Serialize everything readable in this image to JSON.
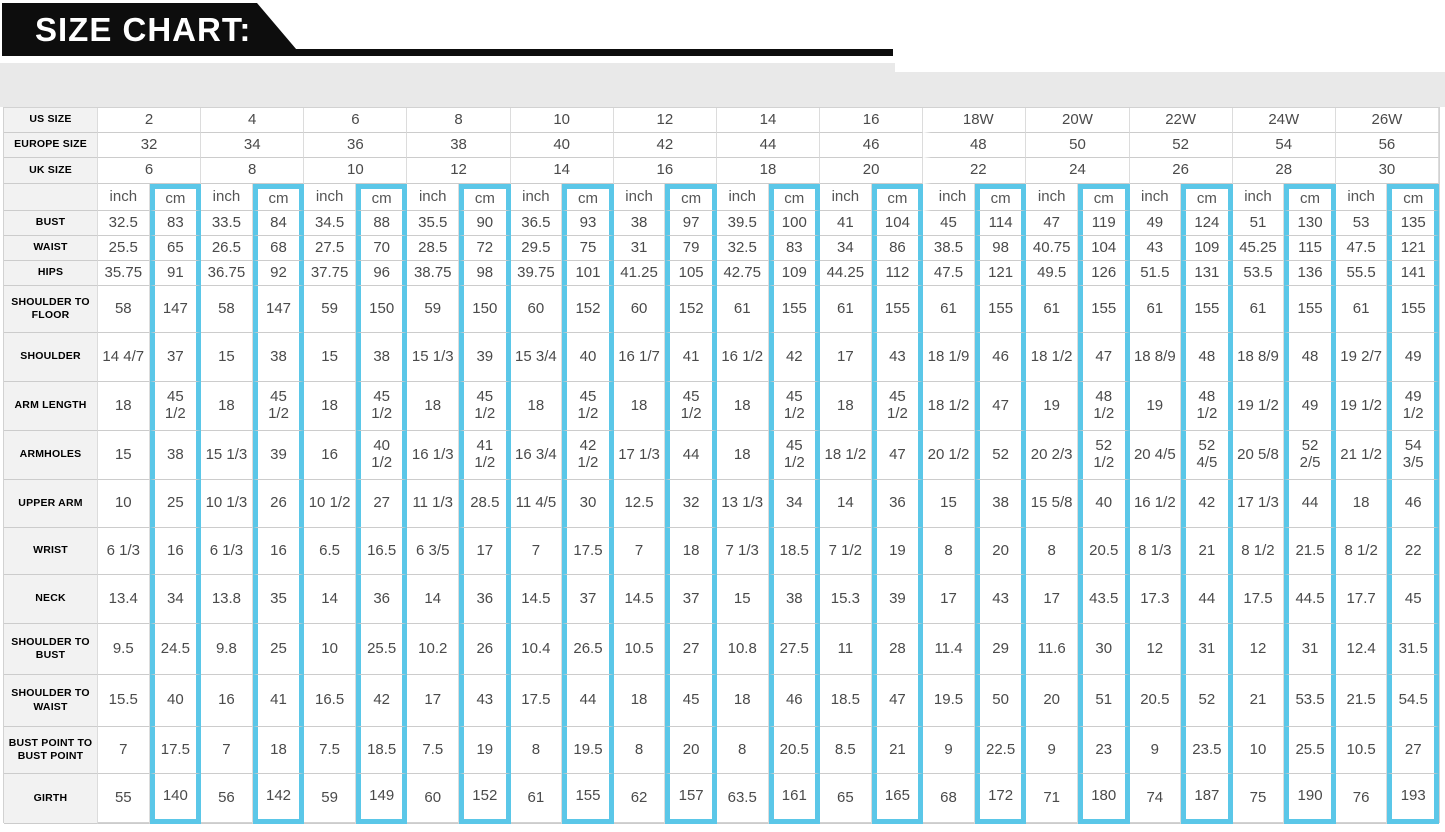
{
  "banner": {
    "title": "SIZE CHART:"
  },
  "colors": {
    "accent_cyan": "#5bc7e8",
    "banner_black": "#0d0d0d",
    "strip_gray": "#e9e9e9",
    "label_gray": "#f2f2f2",
    "value_text": "#4a4a4a"
  },
  "chart_data": {
    "type": "table",
    "title": "SIZE CHART:",
    "unit_labels": [
      "inch",
      "cm"
    ],
    "size_row_labels": {
      "us": "US SIZE",
      "europe": "EUROPE SIZE",
      "uk": "UK SIZE"
    },
    "sizes": {
      "us": [
        "2",
        "4",
        "6",
        "8",
        "10",
        "12",
        "14",
        "16",
        "18W",
        "20W",
        "22W",
        "24W",
        "26W"
      ],
      "europe": [
        "32",
        "34",
        "36",
        "38",
        "40",
        "42",
        "44",
        "46",
        "48",
        "50",
        "52",
        "54",
        "56"
      ],
      "uk": [
        "6",
        "8",
        "10",
        "12",
        "14",
        "16",
        "18",
        "20",
        "22",
        "24",
        "26",
        "28",
        "30"
      ]
    },
    "measurements": [
      {
        "label": "BUST",
        "inch": [
          "32.5",
          "33.5",
          "34.5",
          "35.5",
          "36.5",
          "38",
          "39.5",
          "41",
          "45",
          "47",
          "49",
          "51",
          "53"
        ],
        "cm": [
          "83",
          "84",
          "88",
          "90",
          "93",
          "97",
          "100",
          "104",
          "114",
          "119",
          "124",
          "130",
          "135"
        ]
      },
      {
        "label": "WAIST",
        "inch": [
          "25.5",
          "26.5",
          "27.5",
          "28.5",
          "29.5",
          "31",
          "32.5",
          "34",
          "38.5",
          "40.75",
          "43",
          "45.25",
          "47.5"
        ],
        "cm": [
          "65",
          "68",
          "70",
          "72",
          "75",
          "79",
          "83",
          "86",
          "98",
          "104",
          "109",
          "115",
          "121"
        ]
      },
      {
        "label": "HIPS",
        "inch": [
          "35.75",
          "36.75",
          "37.75",
          "38.75",
          "39.75",
          "41.25",
          "42.75",
          "44.25",
          "47.5",
          "49.5",
          "51.5",
          "53.5",
          "55.5"
        ],
        "cm": [
          "91",
          "92",
          "96",
          "98",
          "101",
          "105",
          "109",
          "112",
          "121",
          "126",
          "131",
          "136",
          "141"
        ]
      },
      {
        "label": "SHOULDER TO FLOOR",
        "inch": [
          "58",
          "58",
          "59",
          "59",
          "60",
          "60",
          "61",
          "61",
          "61",
          "61",
          "61",
          "61",
          "61"
        ],
        "cm": [
          "147",
          "147",
          "150",
          "150",
          "152",
          "152",
          "155",
          "155",
          "155",
          "155",
          "155",
          "155",
          "155"
        ]
      },
      {
        "label": "SHOULDER",
        "inch": [
          "14 4/7",
          "15",
          "15",
          "15 1/3",
          "15 3/4",
          "16 1/7",
          "16 1/2",
          "17",
          "18 1/9",
          "18 1/2",
          "18 8/9",
          "18 8/9",
          "19 2/7"
        ],
        "cm": [
          "37",
          "38",
          "38",
          "39",
          "40",
          "41",
          "42",
          "43",
          "46",
          "47",
          "48",
          "48",
          "49"
        ]
      },
      {
        "label": "ARM LENGTH",
        "inch": [
          "18",
          "18",
          "18",
          "18",
          "18",
          "18",
          "18",
          "18",
          "18 1/2",
          "19",
          "19",
          "19 1/2",
          "19 1/2"
        ],
        "cm": [
          "45 1/2",
          "45 1/2",
          "45 1/2",
          "45 1/2",
          "45 1/2",
          "45 1/2",
          "45 1/2",
          "45 1/2",
          "47",
          "48 1/2",
          "48 1/2",
          "49",
          "49 1/2"
        ]
      },
      {
        "label": "ARMHOLES",
        "inch": [
          "15",
          "15 1/3",
          "16",
          "16 1/3",
          "16 3/4",
          "17 1/3",
          "18",
          "18 1/2",
          "20 1/2",
          "20 2/3",
          "20 4/5",
          "20 5/8",
          "21 1/2"
        ],
        "cm": [
          "38",
          "39",
          "40 1/2",
          "41 1/2",
          "42 1/2",
          "44",
          "45 1/2",
          "47",
          "52",
          "52 1/2",
          "52 4/5",
          "52 2/5",
          "54 3/5"
        ]
      },
      {
        "label": "UPPER ARM",
        "inch": [
          "10",
          "10 1/3",
          "10 1/2",
          "11 1/3",
          "11 4/5",
          "12.5",
          "13 1/3",
          "14",
          "15",
          "15 5/8",
          "16 1/2",
          "17 1/3",
          "18"
        ],
        "cm": [
          "25",
          "26",
          "27",
          "28.5",
          "30",
          "32",
          "34",
          "36",
          "38",
          "40",
          "42",
          "44",
          "46"
        ]
      },
      {
        "label": "WRIST",
        "inch": [
          "6 1/3",
          "6 1/3",
          "6.5",
          "6 3/5",
          "7",
          "7",
          "7 1/3",
          "7 1/2",
          "8",
          "8",
          "8 1/3",
          "8 1/2",
          "8 1/2"
        ],
        "cm": [
          "16",
          "16",
          "16.5",
          "17",
          "17.5",
          "18",
          "18.5",
          "19",
          "20",
          "20.5",
          "21",
          "21.5",
          "22"
        ]
      },
      {
        "label": "NECK",
        "inch": [
          "13.4",
          "13.8",
          "14",
          "14",
          "14.5",
          "14.5",
          "15",
          "15.3",
          "17",
          "17",
          "17.3",
          "17.5",
          "17.7"
        ],
        "cm": [
          "34",
          "35",
          "36",
          "36",
          "37",
          "37",
          "38",
          "39",
          "43",
          "43.5",
          "44",
          "44.5",
          "45"
        ]
      },
      {
        "label": "SHOULDER TO BUST",
        "inch": [
          "9.5",
          "9.8",
          "10",
          "10.2",
          "10.4",
          "10.5",
          "10.8",
          "11",
          "11.4",
          "11.6",
          "12",
          "12",
          "12.4"
        ],
        "cm": [
          "24.5",
          "25",
          "25.5",
          "26",
          "26.5",
          "27",
          "27.5",
          "28",
          "29",
          "30",
          "31",
          "31",
          "31.5"
        ]
      },
      {
        "label": "SHOULDER TO WAIST",
        "inch": [
          "15.5",
          "16",
          "16.5",
          "17",
          "17.5",
          "18",
          "18",
          "18.5",
          "19.5",
          "20",
          "20.5",
          "21",
          "21.5"
        ],
        "cm": [
          "40",
          "41",
          "42",
          "43",
          "44",
          "45",
          "46",
          "47",
          "50",
          "51",
          "52",
          "53.5",
          "54.5"
        ]
      },
      {
        "label": "BUST POINT TO BUST POINT",
        "inch": [
          "7",
          "7",
          "7.5",
          "7.5",
          "8",
          "8",
          "8",
          "8.5",
          "9",
          "9",
          "9",
          "10",
          "10.5"
        ],
        "cm": [
          "17.5",
          "18",
          "18.5",
          "19",
          "19.5",
          "20",
          "20.5",
          "21",
          "22.5",
          "23",
          "23.5",
          "25.5",
          "27"
        ]
      },
      {
        "label": "GIRTH",
        "inch": [
          "55",
          "56",
          "59",
          "60",
          "61",
          "62",
          "63.5",
          "65",
          "68",
          "71",
          "74",
          "75",
          "76"
        ],
        "cm": [
          "140",
          "142",
          "149",
          "152",
          "155",
          "157",
          "161",
          "165",
          "172",
          "180",
          "187",
          "190",
          "193"
        ]
      }
    ]
  }
}
